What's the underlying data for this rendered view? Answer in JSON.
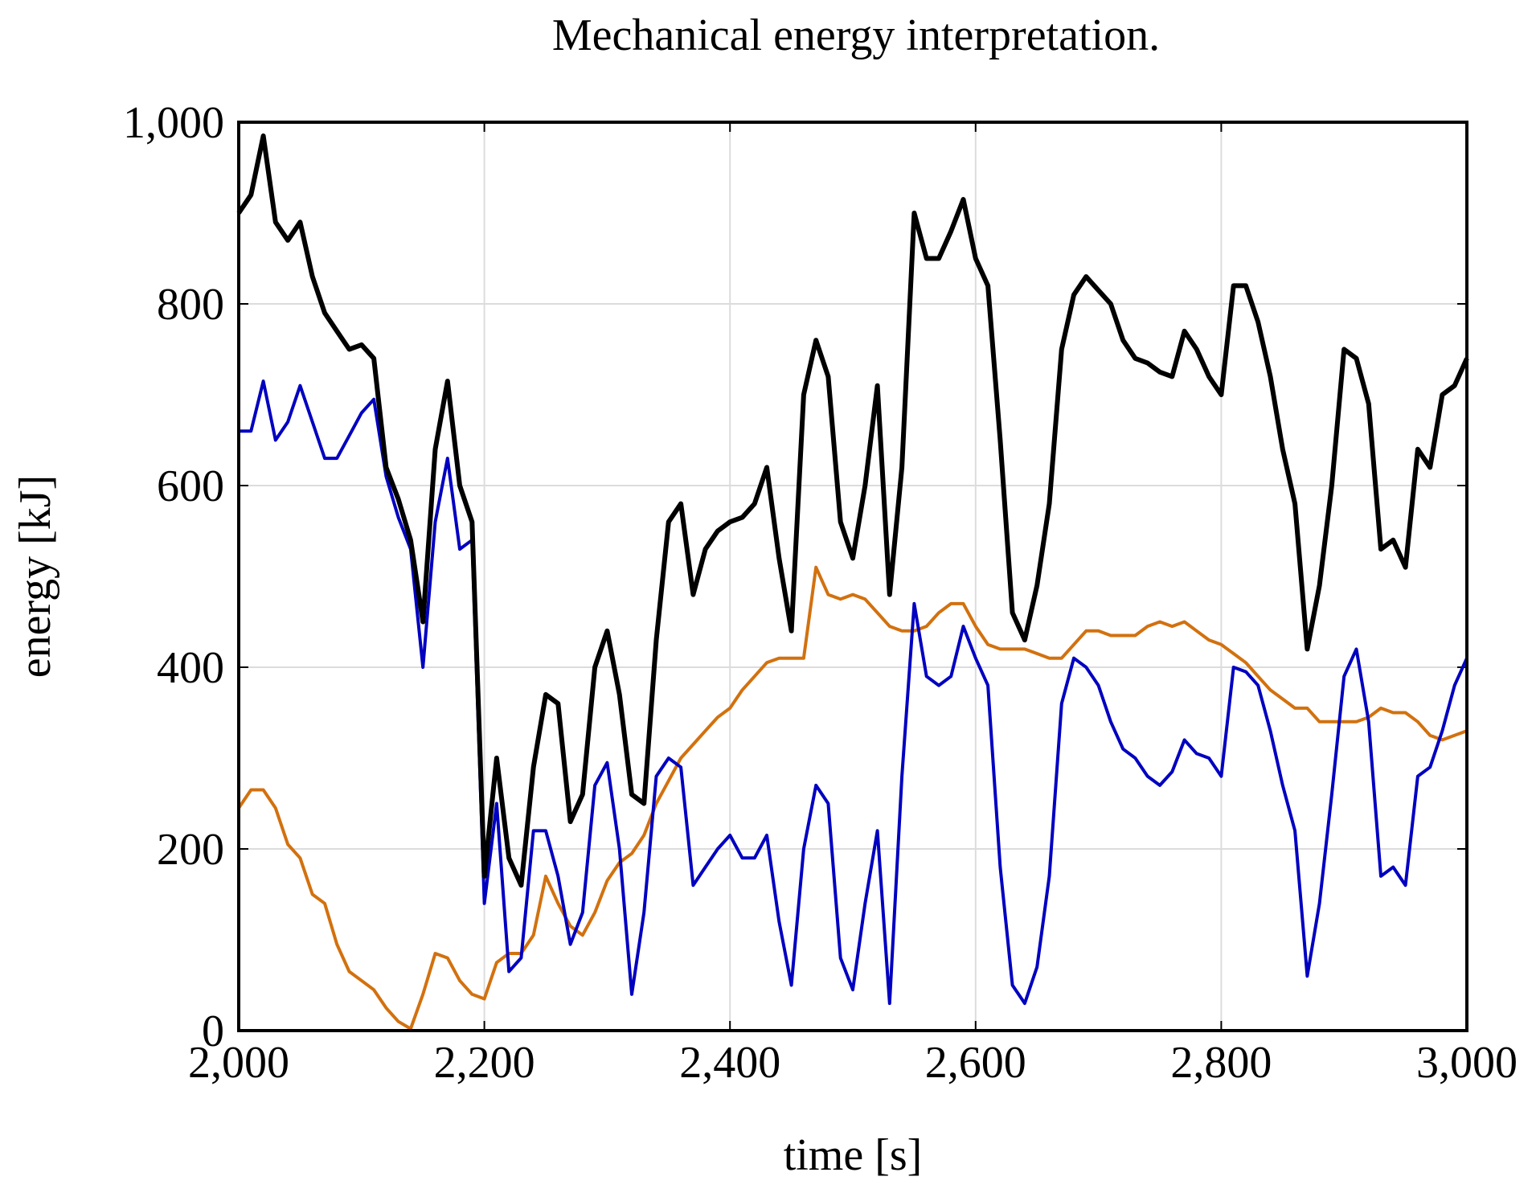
{
  "chart_data": {
    "type": "line",
    "title": "Mechanical energy interpretation.",
    "xlabel": "time [s]",
    "ylabel": "energy [kJ]",
    "x": [
      2000,
      2010,
      2020,
      2030,
      2040,
      2050,
      2060,
      2070,
      2080,
      2090,
      2100,
      2110,
      2120,
      2130,
      2140,
      2150,
      2160,
      2170,
      2180,
      2190,
      2200,
      2210,
      2220,
      2230,
      2240,
      2250,
      2260,
      2270,
      2280,
      2290,
      2300,
      2310,
      2320,
      2330,
      2340,
      2350,
      2360,
      2370,
      2380,
      2390,
      2400,
      2410,
      2420,
      2430,
      2440,
      2450,
      2460,
      2470,
      2480,
      2490,
      2500,
      2510,
      2520,
      2530,
      2540,
      2550,
      2560,
      2570,
      2580,
      2590,
      2600,
      2610,
      2620,
      2630,
      2640,
      2650,
      2660,
      2670,
      2680,
      2690,
      2700,
      2710,
      2720,
      2730,
      2740,
      2750,
      2760,
      2770,
      2780,
      2790,
      2800,
      2810,
      2820,
      2830,
      2840,
      2850,
      2860,
      2870,
      2880,
      2890,
      2900,
      2910,
      2920,
      2930,
      2940,
      2950,
      2960,
      2970,
      2980,
      2990,
      3000
    ],
    "series": [
      {
        "color": "#000000",
        "values": [
          900,
          920,
          985,
          890,
          870,
          890,
          830,
          790,
          770,
          750,
          755,
          740,
          620,
          585,
          540,
          450,
          640,
          715,
          600,
          560,
          170,
          300,
          190,
          160,
          290,
          370,
          360,
          230,
          260,
          400,
          440,
          370,
          260,
          250,
          430,
          560,
          580,
          480,
          530,
          550,
          560,
          565,
          580,
          620,
          520,
          440,
          700,
          760,
          720,
          560,
          520,
          600,
          710,
          480,
          620,
          900,
          850,
          850,
          880,
          915,
          850,
          820,
          650,
          460,
          430,
          490,
          580,
          750,
          810,
          830,
          815,
          800,
          760,
          740,
          735,
          725,
          720,
          770,
          750,
          720,
          700,
          820,
          820,
          780,
          720,
          640,
          580,
          420,
          490,
          600,
          750,
          740,
          690,
          530,
          540,
          510,
          640,
          620,
          700,
          710,
          740
        ]
      },
      {
        "color": "#0000c0",
        "values": [
          660,
          660,
          715,
          650,
          670,
          710,
          670,
          630,
          630,
          655,
          680,
          695,
          610,
          565,
          530,
          400,
          560,
          630,
          530,
          540,
          140,
          250,
          65,
          80,
          220,
          220,
          170,
          95,
          130,
          270,
          295,
          200,
          40,
          130,
          280,
          300,
          290,
          160,
          180,
          200,
          215,
          190,
          190,
          215,
          120,
          50,
          200,
          270,
          250,
          80,
          45,
          140,
          220,
          30,
          280,
          470,
          390,
          380,
          390,
          445,
          410,
          380,
          180,
          50,
          30,
          70,
          170,
          360,
          410,
          400,
          380,
          340,
          310,
          300,
          280,
          270,
          285,
          320,
          305,
          300,
          280,
          400,
          395,
          380,
          330,
          270,
          220,
          60,
          140,
          260,
          390,
          420,
          340,
          170,
          180,
          160,
          280,
          290,
          330,
          380,
          410
        ]
      },
      {
        "color": "#d2710f",
        "values": [
          245,
          265,
          265,
          245,
          205,
          190,
          150,
          140,
          95,
          65,
          55,
          45,
          25,
          10,
          2,
          40,
          85,
          80,
          55,
          40,
          35,
          75,
          85,
          85,
          105,
          170,
          140,
          115,
          105,
          130,
          165,
          185,
          195,
          215,
          250,
          275,
          300,
          315,
          330,
          345,
          355,
          375,
          390,
          405,
          410,
          410,
          410,
          510,
          480,
          475,
          480,
          475,
          460,
          445,
          440,
          440,
          445,
          460,
          470,
          470,
          445,
          425,
          420,
          420,
          420,
          415,
          410,
          410,
          425,
          440,
          440,
          435,
          435,
          435,
          445,
          450,
          445,
          450,
          440,
          430,
          425,
          415,
          405,
          390,
          375,
          365,
          355,
          355,
          340,
          340,
          340,
          340,
          345,
          355,
          350,
          350,
          340,
          325,
          320,
          325,
          330
        ]
      }
    ],
    "xlim": [
      2000,
      3000
    ],
    "ylim": [
      0,
      1000
    ],
    "xticks": [
      {
        "value": 2000,
        "label": "2,000"
      },
      {
        "value": 2200,
        "label": "2,200"
      },
      {
        "value": 2400,
        "label": "2,400"
      },
      {
        "value": 2600,
        "label": "2,600"
      },
      {
        "value": 2800,
        "label": "2,800"
      },
      {
        "value": 3000,
        "label": "3,000"
      }
    ],
    "yticks": [
      0,
      200,
      400,
      600,
      800,
      {
        "value": 1000,
        "label": "1,000"
      }
    ],
    "grid": true
  }
}
